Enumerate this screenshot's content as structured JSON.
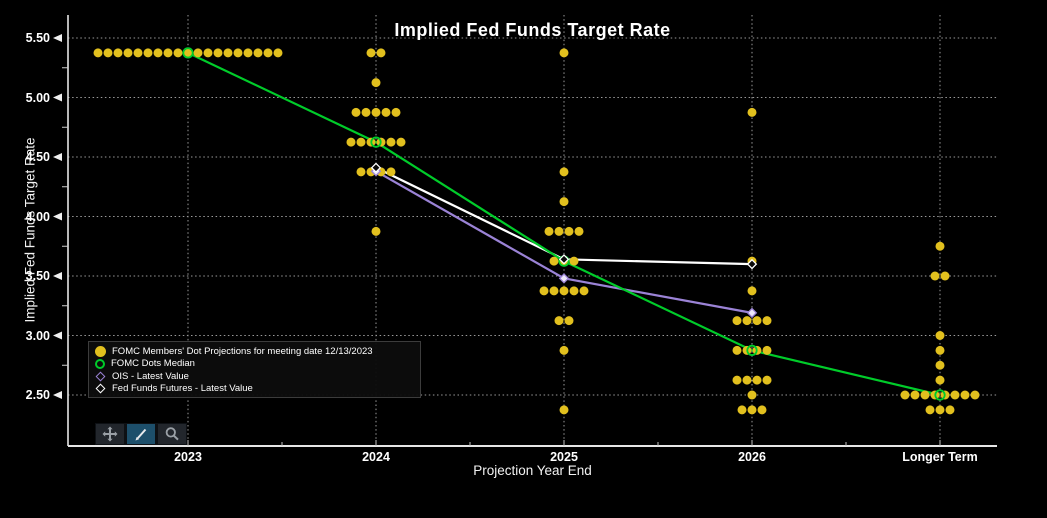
{
  "title": "Implied Fed Funds Target Rate",
  "axes": {
    "y_title": "Implied Fed Funds Target Rate",
    "x_title": "Projection Year End",
    "y_tick_labels": [
      "5.50",
      "5.00",
      "4.50",
      "4.00",
      "3.50",
      "3.00",
      "2.50"
    ]
  },
  "legend": {
    "items": [
      {
        "label": "FOMC Members' Dot Projections for meeting date 12/13/2023",
        "marker": "filled-circle",
        "color": "#e2c01e"
      },
      {
        "label": "FOMC Dots Median",
        "marker": "open-circle",
        "color": "#00cc2a"
      },
      {
        "label": "OIS - Latest Value",
        "marker": "open-diamond",
        "color": "#9b83d6"
      },
      {
        "label": "Fed Funds Futures - Latest Value",
        "marker": "open-diamond",
        "color": "#ffffff"
      }
    ]
  },
  "toolbar": {
    "buttons": [
      {
        "name": "pan",
        "selected": false
      },
      {
        "name": "draw-line",
        "selected": true
      },
      {
        "name": "zoom",
        "selected": false
      }
    ]
  },
  "chart_data": {
    "type": "scatter",
    "title": "Implied Fed Funds Target Rate",
    "xlabel": "Projection Year End",
    "ylabel": "Implied Fed Funds Target Rate",
    "ylim": [
      2.07,
      5.69
    ],
    "y_major_ticks": [
      5.5,
      5.0,
      4.5,
      4.0,
      3.5,
      3.0,
      2.5
    ],
    "grid": "dotted",
    "legend_position": "lower-left",
    "categories": [
      "2023",
      "2024",
      "2025",
      "2026",
      "Longer Term"
    ],
    "dot_color": "#e2c01e",
    "dots": [
      {
        "category": "2023",
        "points": [
          {
            "value": 5.375,
            "count": 19
          }
        ]
      },
      {
        "category": "2024",
        "points": [
          {
            "value": 5.375,
            "count": 2
          },
          {
            "value": 5.125,
            "count": 1
          },
          {
            "value": 4.875,
            "count": 5
          },
          {
            "value": 4.625,
            "count": 6
          },
          {
            "value": 4.375,
            "count": 4
          },
          {
            "value": 3.875,
            "count": 1
          }
        ]
      },
      {
        "category": "2025",
        "points": [
          {
            "value": 5.375,
            "count": 1
          },
          {
            "value": 4.375,
            "count": 1
          },
          {
            "value": 4.125,
            "count": 1
          },
          {
            "value": 3.875,
            "count": 4
          },
          {
            "value": 3.625,
            "count": 3
          },
          {
            "value": 3.375,
            "count": 5
          },
          {
            "value": 3.125,
            "count": 2
          },
          {
            "value": 2.875,
            "count": 1
          },
          {
            "value": 2.375,
            "count": 1
          }
        ]
      },
      {
        "category": "2026",
        "points": [
          {
            "value": 4.875,
            "count": 1
          },
          {
            "value": 3.625,
            "count": 1
          },
          {
            "value": 3.375,
            "count": 1
          },
          {
            "value": 3.125,
            "count": 4
          },
          {
            "value": 2.875,
            "count": 4
          },
          {
            "value": 2.625,
            "count": 4
          },
          {
            "value": 2.5,
            "count": 1
          },
          {
            "value": 2.375,
            "count": 3
          }
        ]
      },
      {
        "category": "Longer Term",
        "points": [
          {
            "value": 3.75,
            "count": 1
          },
          {
            "value": 3.5,
            "count": 2
          },
          {
            "value": 3.0,
            "count": 1
          },
          {
            "value": 2.875,
            "count": 1
          },
          {
            "value": 2.75,
            "count": 1
          },
          {
            "value": 2.625,
            "count": 1
          },
          {
            "value": 2.5,
            "count": 8
          },
          {
            "value": 2.375,
            "count": 3
          }
        ]
      }
    ],
    "series": [
      {
        "name": "FOMC Dots Median",
        "color": "#00cc2a",
        "marker": "open-circle",
        "values": [
          5.375,
          4.625,
          3.625,
          2.875,
          2.5
        ]
      },
      {
        "name": "OIS - Latest Value",
        "color": "#9b83d6",
        "marker": "open-diamond",
        "values": [
          null,
          4.38,
          3.48,
          3.19,
          null
        ]
      },
      {
        "name": "Fed Funds Futures - Latest Value",
        "color": "#ffffff",
        "marker": "open-diamond",
        "values": [
          null,
          4.41,
          3.64,
          3.6,
          null
        ]
      }
    ]
  }
}
